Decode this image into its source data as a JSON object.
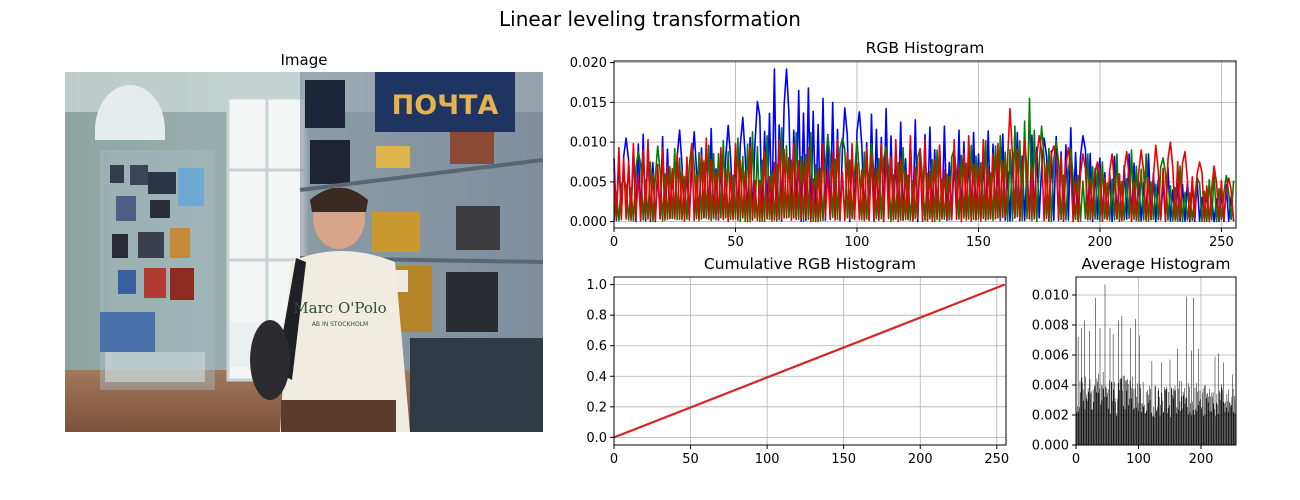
{
  "figure": {
    "title": "Linear leveling transformation"
  },
  "image_panel": {
    "title": "Image",
    "sign_text": "ПОЧТА",
    "sweater_text": "Marc O'Polo",
    "sweater_subtext": "AB IN STOCKHOLM"
  },
  "colors": {
    "red": "#ee0000",
    "green": "#008000",
    "blue": "#0000ff",
    "avg": "#000000",
    "cum_red": "#d62728",
    "grid": "#b0b0b0"
  },
  "chart_data": [
    {
      "id": "rgb",
      "type": "line",
      "title": "RGB Histogram",
      "xlim": [
        0,
        256
      ],
      "ylim": [
        -0.0008,
        0.0202
      ],
      "xticks": [
        0,
        50,
        100,
        150,
        200,
        250
      ],
      "xticklabels": [
        "0",
        "50",
        "100",
        "150",
        "200",
        "250"
      ],
      "yticks": [
        0,
        0.005,
        0.01,
        0.015,
        0.02
      ],
      "yticklabels": [
        "0.000",
        "0.005",
        "0.010",
        "0.015",
        "0.020"
      ],
      "series": [
        {
          "name": "blue",
          "peaks": [
            [
              5,
              0.0105
            ],
            [
              12,
              0.011
            ],
            [
              20,
              0.0107
            ],
            [
              27,
              0.0115
            ],
            [
              33,
              0.0113
            ],
            [
              40,
              0.0117
            ],
            [
              47,
              0.0121
            ],
            [
              53,
              0.0131
            ],
            [
              59,
              0.0151
            ],
            [
              66,
              0.0192
            ],
            [
              71,
              0.0192
            ],
            [
              76,
              0.0165
            ],
            [
              80,
              0.0168
            ],
            [
              86,
              0.0155
            ],
            [
              90,
              0.015
            ],
            [
              95,
              0.0143
            ],
            [
              101,
              0.0138
            ],
            [
              106,
              0.0135
            ],
            [
              112,
              0.0142
            ],
            [
              118,
              0.0125
            ],
            [
              124,
              0.0128
            ],
            [
              130,
              0.0119
            ],
            [
              136,
              0.012
            ],
            [
              142,
              0.0115
            ],
            [
              148,
              0.0112
            ],
            [
              154,
              0.0114
            ],
            [
              160,
              0.011
            ],
            [
              166,
              0.0112
            ],
            [
              172,
              0.0109
            ],
            [
              177,
              0.0105
            ],
            [
              182,
              0.0107
            ],
            [
              188,
              0.0118
            ],
            [
              193,
              0.0108
            ],
            [
              200,
              0.008
            ],
            [
              206,
              0.0082
            ],
            [
              212,
              0.0085
            ],
            [
              220,
              0.0085
            ],
            [
              228,
              0.0068
            ],
            [
              240,
              0.0052
            ]
          ]
        },
        {
          "name": "green",
          "peaks": [
            [
              4,
              0.0052
            ],
            [
              10,
              0.0088
            ],
            [
              18,
              0.0095
            ],
            [
              25,
              0.0092
            ],
            [
              32,
              0.0098
            ],
            [
              39,
              0.0096
            ],
            [
              45,
              0.0102
            ],
            [
              51,
              0.0105
            ],
            [
              57,
              0.0113
            ],
            [
              63,
              0.0108
            ],
            [
              69,
              0.0118
            ],
            [
              75,
              0.0112
            ],
            [
              81,
              0.0112
            ],
            [
              88,
              0.0108
            ],
            [
              94,
              0.0105
            ],
            [
              100,
              0.0102
            ],
            [
              106,
              0.0098
            ],
            [
              112,
              0.0095
            ],
            [
              119,
              0.0093
            ],
            [
              126,
              0.0092
            ],
            [
              133,
              0.009
            ],
            [
              140,
              0.0091
            ],
            [
              147,
              0.0096
            ],
            [
              153,
              0.0102
            ],
            [
              159,
              0.0108
            ],
            [
              165,
              0.012
            ],
            [
              171,
              0.0155
            ],
            [
              176,
              0.012
            ],
            [
              182,
              0.0101
            ],
            [
              188,
              0.0092
            ],
            [
              195,
              0.0085
            ],
            [
              201,
              0.0075
            ],
            [
              207,
              0.0085
            ],
            [
              213,
              0.009
            ],
            [
              219,
              0.0085
            ],
            [
              226,
              0.008
            ],
            [
              233,
              0.007
            ],
            [
              240,
              0.0055
            ],
            [
              247,
              0.006
            ],
            [
              252,
              0.0058
            ]
          ]
        },
        {
          "name": "red",
          "peaks": [
            [
              2,
              0.0093
            ],
            [
              8,
              0.0098
            ],
            [
              14,
              0.0103
            ],
            [
              20,
              0.0093
            ],
            [
              26,
              0.0085
            ],
            [
              32,
              0.0098
            ],
            [
              38,
              0.0105
            ],
            [
              44,
              0.0093
            ],
            [
              50,
              0.0098
            ],
            [
              56,
              0.0095
            ],
            [
              62,
              0.0088
            ],
            [
              68,
              0.0103
            ],
            [
              74,
              0.0098
            ],
            [
              80,
              0.0093
            ],
            [
              86,
              0.0098
            ],
            [
              92,
              0.0103
            ],
            [
              98,
              0.0098
            ],
            [
              104,
              0.0093
            ],
            [
              110,
              0.0098
            ],
            [
              116,
              0.0103
            ],
            [
              122,
              0.0108
            ],
            [
              128,
              0.0103
            ],
            [
              134,
              0.0095
            ],
            [
              140,
              0.0103
            ],
            [
              146,
              0.0108
            ],
            [
              152,
              0.0103
            ],
            [
              158,
              0.0098
            ],
            [
              163,
              0.0142
            ],
            [
              169,
              0.0103
            ],
            [
              175,
              0.0108
            ],
            [
              181,
              0.0095
            ],
            [
              187,
              0.0093
            ],
            [
              193,
              0.0085
            ],
            [
              199,
              0.0075
            ],
            [
              205,
              0.0085
            ],
            [
              211,
              0.0088
            ],
            [
              217,
              0.009
            ],
            [
              223,
              0.0096
            ],
            [
              229,
              0.01
            ],
            [
              235,
              0.0088
            ],
            [
              241,
              0.0075
            ],
            [
              247,
              0.007
            ],
            [
              253,
              0.0055
            ]
          ]
        }
      ]
    },
    {
      "id": "cum",
      "type": "line",
      "title": "Cumulative RGB Histogram",
      "xlim": [
        0,
        256
      ],
      "ylim": [
        -0.05,
        1.05
      ],
      "xticks": [
        0,
        50,
        100,
        150,
        200,
        250
      ],
      "xticklabels": [
        "0",
        "50",
        "100",
        "150",
        "200",
        "250"
      ],
      "yticks": [
        0,
        0.2,
        0.4,
        0.6,
        0.8,
        1.0
      ],
      "yticklabels": [
        "0.0",
        "0.2",
        "0.4",
        "0.6",
        "0.8",
        "1.0"
      ],
      "series": [
        {
          "name": "blue",
          "x": [
            0,
            255
          ],
          "y": [
            0.0,
            1.0
          ]
        },
        {
          "name": "green",
          "x": [
            0,
            255
          ],
          "y": [
            0.0,
            1.0
          ]
        },
        {
          "name": "red",
          "x": [
            0,
            255
          ],
          "y": [
            0.0,
            1.0
          ]
        }
      ]
    },
    {
      "id": "avg",
      "type": "bar",
      "title": "Average Histogram",
      "xlim": [
        0,
        256
      ],
      "ylim": [
        0,
        0.0112
      ],
      "xticks": [
        0,
        100,
        200
      ],
      "xticklabels": [
        "0",
        "100",
        "200"
      ],
      "yticks": [
        0,
        0.002,
        0.004,
        0.006,
        0.008,
        0.01
      ],
      "yticklabels": [
        "0.000",
        "0.002",
        "0.004",
        "0.006",
        "0.008",
        "0.010"
      ],
      "segments": [
        [
          0,
          0.0045
        ],
        [
          20,
          0.0052
        ],
        [
          40,
          0.005
        ],
        [
          60,
          0.0042
        ],
        [
          80,
          0.0046
        ],
        [
          100,
          0.0044
        ],
        [
          120,
          0.004
        ],
        [
          140,
          0.0038
        ],
        [
          160,
          0.0042
        ],
        [
          180,
          0.0045
        ],
        [
          200,
          0.0038
        ],
        [
          220,
          0.004
        ],
        [
          240,
          0.0038
        ],
        [
          255,
          0.0035
        ]
      ],
      "spikes": [
        [
          3,
          0.0072
        ],
        [
          8,
          0.0078
        ],
        [
          13,
          0.0083
        ],
        [
          21,
          0.0076
        ],
        [
          31,
          0.0098
        ],
        [
          38,
          0.0078
        ],
        [
          46,
          0.0107
        ],
        [
          54,
          0.0078
        ],
        [
          59,
          0.0074
        ],
        [
          68,
          0.0083
        ],
        [
          73,
          0.0086
        ],
        [
          87,
          0.0078
        ],
        [
          95,
          0.0084
        ],
        [
          101,
          0.0073
        ],
        [
          121,
          0.0056
        ],
        [
          136,
          0.0055
        ],
        [
          150,
          0.0057
        ],
        [
          162,
          0.0064
        ],
        [
          176,
          0.0099
        ],
        [
          184,
          0.0063
        ],
        [
          188,
          0.0098
        ],
        [
          196,
          0.0064
        ],
        [
          222,
          0.0059
        ],
        [
          228,
          0.0061
        ],
        [
          236,
          0.0055
        ],
        [
          250,
          0.0047
        ]
      ]
    }
  ]
}
